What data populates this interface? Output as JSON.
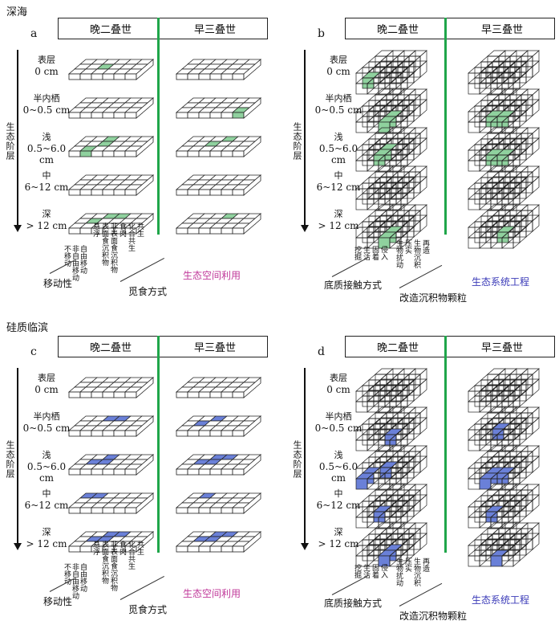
{
  "sections": [
    {
      "title": "深海"
    },
    {
      "title": "硅质临滨"
    }
  ],
  "panels": [
    {
      "letter": "a",
      "type": "flat",
      "fill": "#8fd19e",
      "highlights": {
        "left": [
          [
            [
              1,
              2
            ],
            [
              2,
              3
            ]
          ],
          [],
          [
            [
              1,
              1
            ],
            [
              1,
              3
            ]
          ],
          [],
          [
            [
              2,
              2
            ],
            [
              3,
              3
            ]
          ]
        ],
        "right": [
          [],
          [
            [
              0,
              5
            ]
          ],
          [
            [
              1,
              2
            ],
            [
              2,
              3
            ]
          ],
          [],
          [
            [
              2,
              4
            ]
          ]
        ]
      }
    },
    {
      "letter": "b",
      "type": "cube",
      "fill": "#8fd19e"
    },
    {
      "letter": "c",
      "type": "flat",
      "fill": "#6a80d8"
    },
    {
      "letter": "d",
      "type": "cube",
      "fill": "#6a80d8"
    }
  ],
  "header": {
    "left": "晚二叠世",
    "right": "早三叠世"
  },
  "axis_title": "生态阶层",
  "levels": [
    {
      "name": "表层",
      "depth": "0 cm"
    },
    {
      "name": "半内栖",
      "depth": "0~0.5 cm"
    },
    {
      "name": "浅",
      "depth": "0.5~6.0 cm"
    },
    {
      "name": "中",
      "depth": "6~12 cm"
    },
    {
      "name": "深",
      "depth": "> 12 cm"
    }
  ],
  "flat_categories": {
    "mobility": [
      "不移动",
      "非自由移动",
      "自由移动"
    ],
    "feeding": [
      "悬浮",
      "表面食沉积物",
      "非表面食沉积物",
      "食肉",
      "化合共生",
      "共生"
    ],
    "mobility_label": "移动性",
    "feeding_label": "觅食方式",
    "caption": "生态空间利用"
  },
  "cube_categories": {
    "contact": [
      "挖掘",
      "生活",
      "固着",
      "侵入"
    ],
    "modify": [
      "生物扰动",
      "压实",
      "生物沉积",
      "再造"
    ],
    "contact_label": "底质接触方式",
    "modify_label": "改造沉积物颗粒",
    "caption": "生态系统工程"
  },
  "colors": {
    "divider": "#1fa64a",
    "pink": "#c0399a",
    "blue": "#3a3ab8",
    "green": "#8fd19e",
    "bluefill": "#6a80d8"
  }
}
